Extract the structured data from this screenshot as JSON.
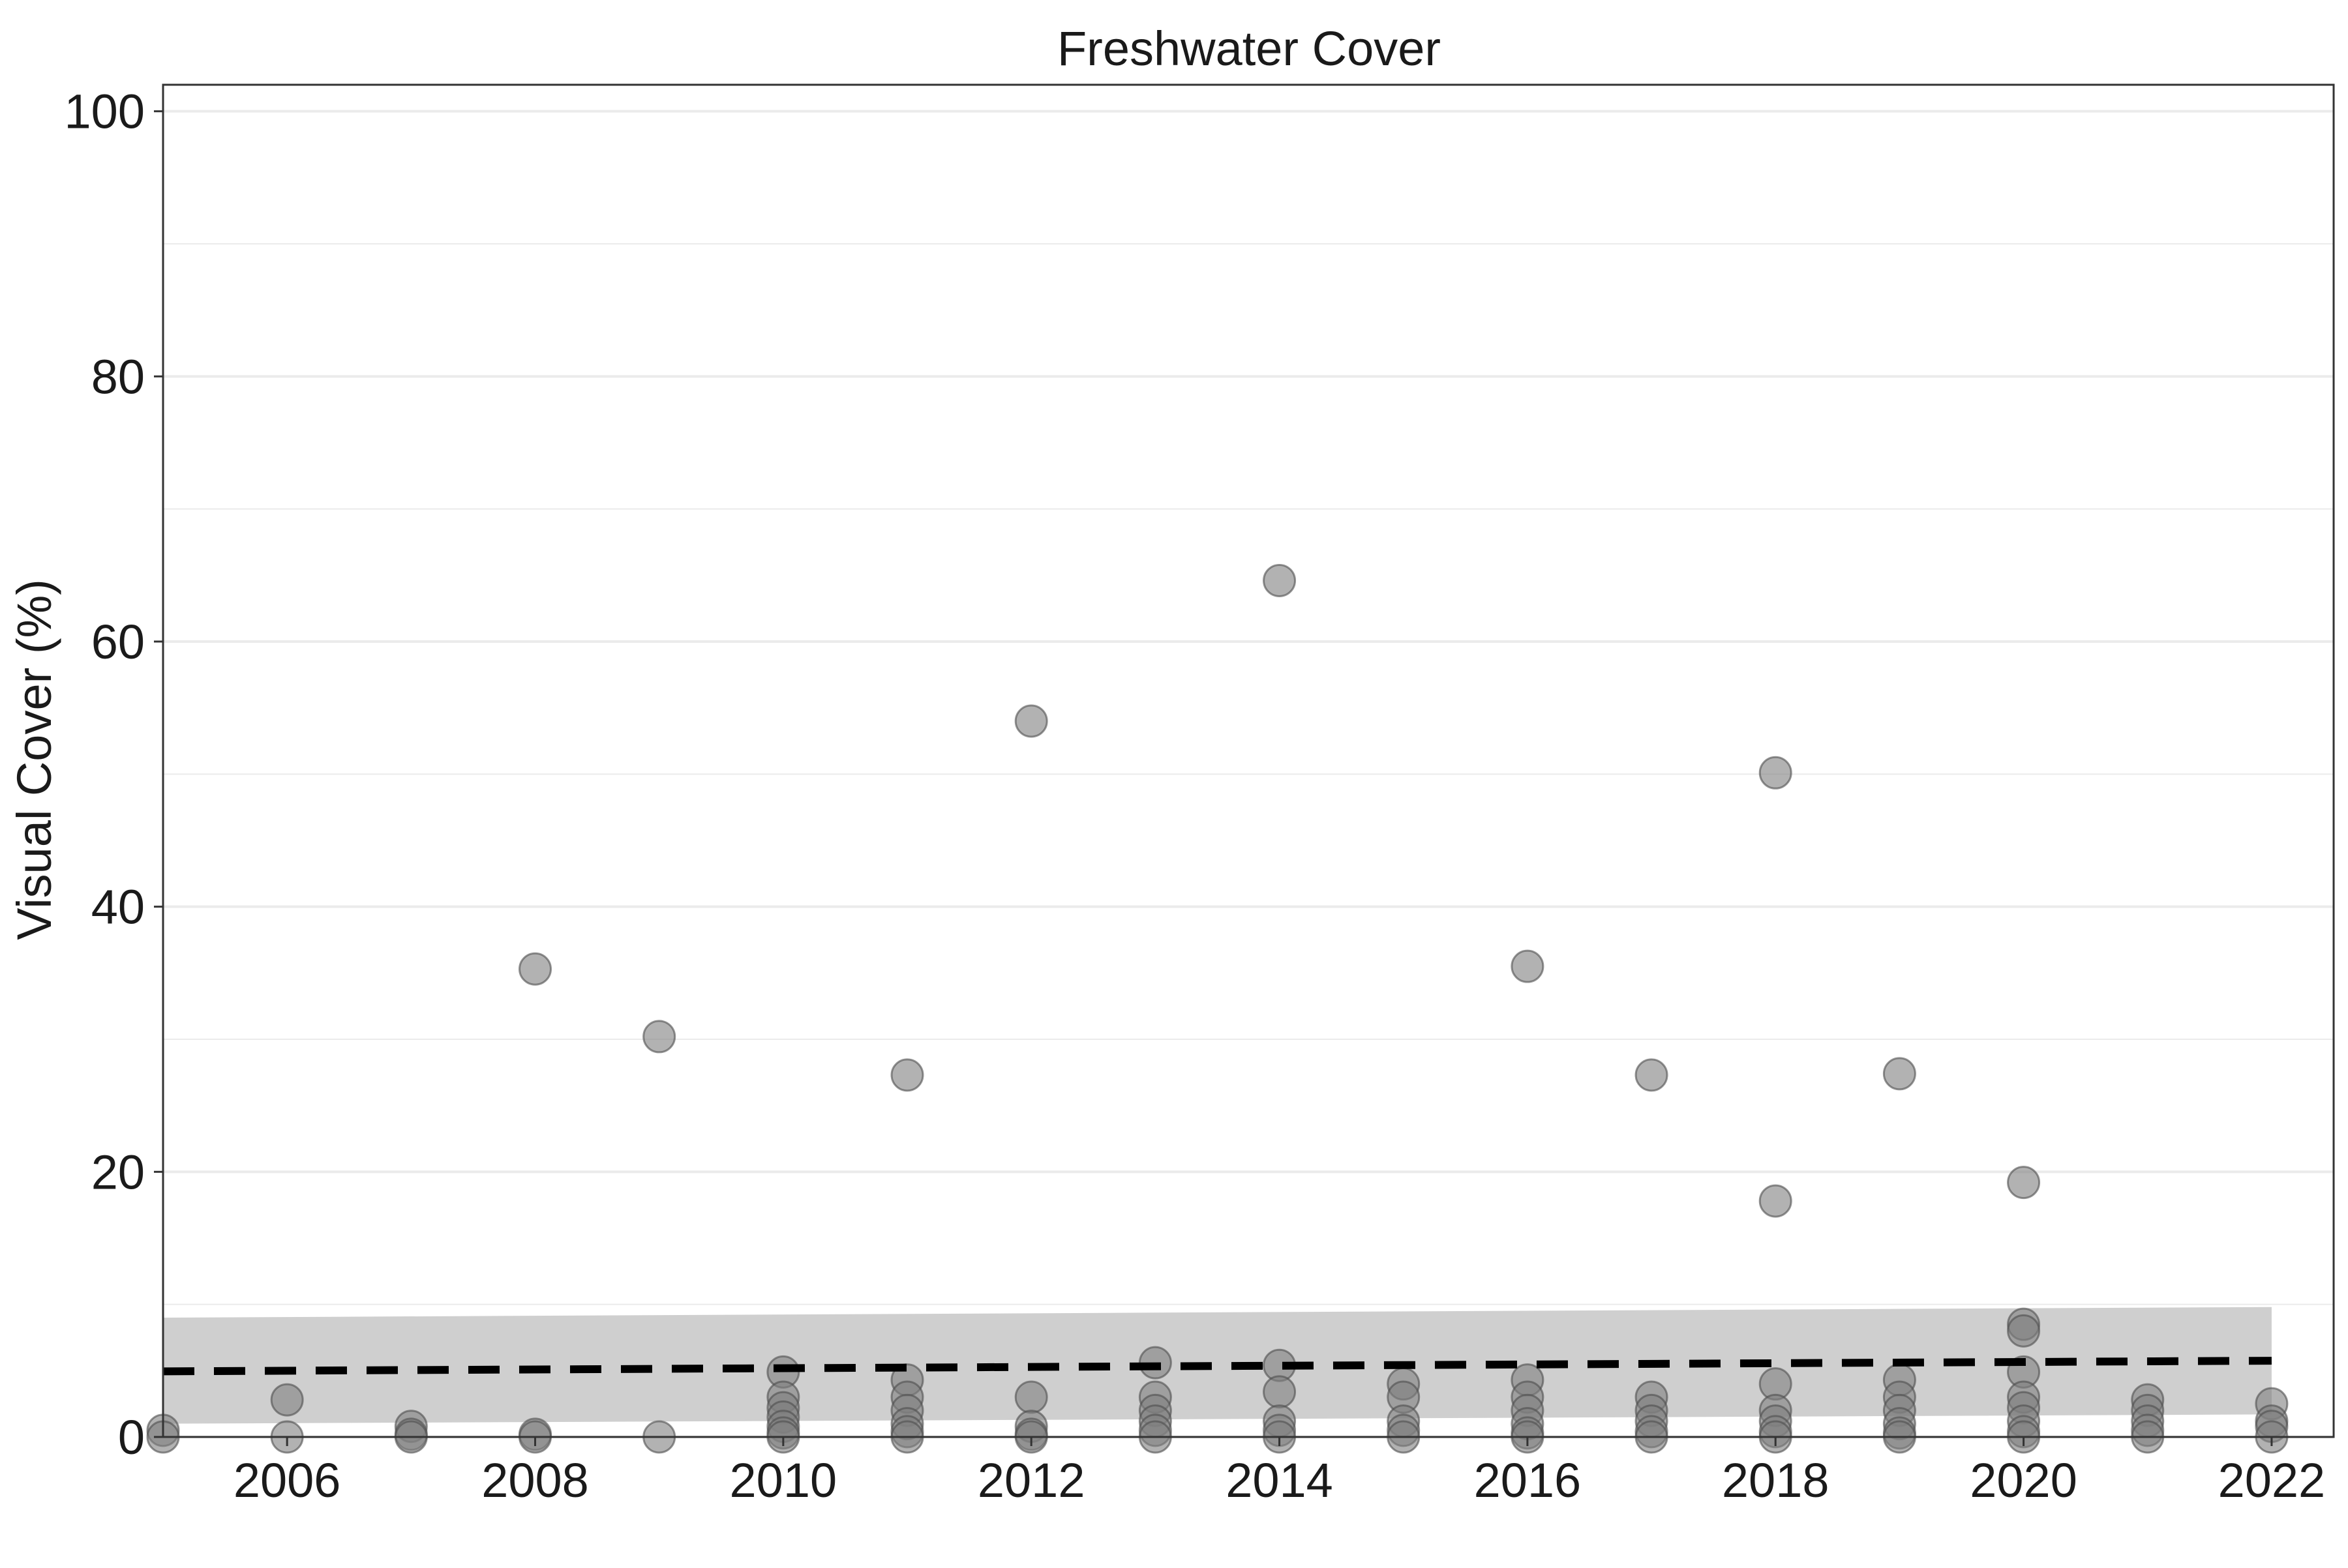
{
  "chart_data": {
    "type": "scatter",
    "title": "Freshwater Cover",
    "xlabel": "",
    "ylabel": "Visual Cover (%)",
    "xlim": [
      2005,
      2022.5
    ],
    "ylim": [
      0,
      102
    ],
    "xticks": [
      "2006",
      "2008",
      "2010",
      "2012",
      "2014",
      "2016",
      "2018",
      "2020",
      "2022"
    ],
    "yticks": [
      "0",
      "20",
      "40",
      "60",
      "80",
      "100"
    ],
    "grid": "horizontal",
    "legend": "none",
    "colors": {
      "point_fill": "#7f7f7f",
      "point_stroke": "#4d4d4d",
      "ribbon": "#bfbfbf",
      "trend_line": "#000000",
      "grid": "#ebebeb",
      "panel_border": "#333333"
    },
    "series": [
      {
        "points": [
          {
            "x": 2005,
            "y": 0.5
          },
          {
            "x": 2005,
            "y": 0
          },
          {
            "x": 2006,
            "y": 2.8
          },
          {
            "x": 2006,
            "y": 0
          },
          {
            "x": 2007,
            "y": 0.8
          },
          {
            "x": 2007,
            "y": 0.2
          },
          {
            "x": 2007,
            "y": 0
          },
          {
            "x": 2008,
            "y": 35.3
          },
          {
            "x": 2008,
            "y": 0.2
          },
          {
            "x": 2008,
            "y": 0
          },
          {
            "x": 2009,
            "y": 30.2
          },
          {
            "x": 2009,
            "y": 0
          },
          {
            "x": 2010,
            "y": 4.9
          },
          {
            "x": 2010,
            "y": 3.0
          },
          {
            "x": 2010,
            "y": 2.2
          },
          {
            "x": 2010,
            "y": 1.5
          },
          {
            "x": 2010,
            "y": 0.8
          },
          {
            "x": 2010,
            "y": 0.3
          },
          {
            "x": 2010,
            "y": 0
          },
          {
            "x": 2011,
            "y": 27.3
          },
          {
            "x": 2011,
            "y": 4.3
          },
          {
            "x": 2011,
            "y": 3.0
          },
          {
            "x": 2011,
            "y": 2.0
          },
          {
            "x": 2011,
            "y": 1.0
          },
          {
            "x": 2011,
            "y": 0.4
          },
          {
            "x": 2011,
            "y": 0
          },
          {
            "x": 2012,
            "y": 54.0
          },
          {
            "x": 2012,
            "y": 3.0
          },
          {
            "x": 2012,
            "y": 0.8
          },
          {
            "x": 2012,
            "y": 0.2
          },
          {
            "x": 2012,
            "y": 0
          },
          {
            "x": 2013,
            "y": 5.6
          },
          {
            "x": 2013,
            "y": 3.0
          },
          {
            "x": 2013,
            "y": 2.0
          },
          {
            "x": 2013,
            "y": 1.2
          },
          {
            "x": 2013,
            "y": 0.5
          },
          {
            "x": 2013,
            "y": 0
          },
          {
            "x": 2014,
            "y": 64.6
          },
          {
            "x": 2014,
            "y": 5.4
          },
          {
            "x": 2014,
            "y": 3.4
          },
          {
            "x": 2014,
            "y": 1.2
          },
          {
            "x": 2014,
            "y": 0.5
          },
          {
            "x": 2014,
            "y": 0
          },
          {
            "x": 2015,
            "y": 4.0
          },
          {
            "x": 2015,
            "y": 3.0
          },
          {
            "x": 2015,
            "y": 1.2
          },
          {
            "x": 2015,
            "y": 0.5
          },
          {
            "x": 2015,
            "y": 0
          },
          {
            "x": 2016,
            "y": 35.5
          },
          {
            "x": 2016,
            "y": 4.3
          },
          {
            "x": 2016,
            "y": 3.0
          },
          {
            "x": 2016,
            "y": 2.0
          },
          {
            "x": 2016,
            "y": 1.0
          },
          {
            "x": 2016,
            "y": 0.3
          },
          {
            "x": 2016,
            "y": 0
          },
          {
            "x": 2017,
            "y": 27.3
          },
          {
            "x": 2017,
            "y": 3.0
          },
          {
            "x": 2017,
            "y": 2.0
          },
          {
            "x": 2017,
            "y": 1.2
          },
          {
            "x": 2017,
            "y": 0.4
          },
          {
            "x": 2017,
            "y": 0
          },
          {
            "x": 2018,
            "y": 50.1
          },
          {
            "x": 2018,
            "y": 17.8
          },
          {
            "x": 2018,
            "y": 4.0
          },
          {
            "x": 2018,
            "y": 2.0
          },
          {
            "x": 2018,
            "y": 1.2
          },
          {
            "x": 2018,
            "y": 0.4
          },
          {
            "x": 2018,
            "y": 0
          },
          {
            "x": 2019,
            "y": 27.4
          },
          {
            "x": 2019,
            "y": 4.3
          },
          {
            "x": 2019,
            "y": 3.0
          },
          {
            "x": 2019,
            "y": 2.0
          },
          {
            "x": 2019,
            "y": 1.0
          },
          {
            "x": 2019,
            "y": 0.3
          },
          {
            "x": 2019,
            "y": 0
          },
          {
            "x": 2020,
            "y": 19.2
          },
          {
            "x": 2020,
            "y": 8.5
          },
          {
            "x": 2020,
            "y": 8.0
          },
          {
            "x": 2020,
            "y": 4.9
          },
          {
            "x": 2020,
            "y": 3.0
          },
          {
            "x": 2020,
            "y": 2.2
          },
          {
            "x": 2020,
            "y": 1.2
          },
          {
            "x": 2020,
            "y": 0.4
          },
          {
            "x": 2020,
            "y": 0
          },
          {
            "x": 2021,
            "y": 2.8
          },
          {
            "x": 2021,
            "y": 2.0
          },
          {
            "x": 2021,
            "y": 1.2
          },
          {
            "x": 2021,
            "y": 0.5
          },
          {
            "x": 2021,
            "y": 0
          },
          {
            "x": 2022,
            "y": 2.5
          },
          {
            "x": 2022,
            "y": 1.2
          },
          {
            "x": 2022,
            "y": 0.8
          },
          {
            "x": 2022,
            "y": 0
          }
        ]
      }
    ],
    "trend": {
      "style": "dashed",
      "x": [
        2005,
        2022
      ],
      "y": [
        4.95,
        5.75
      ],
      "band_upper": [
        9.0,
        9.8
      ],
      "band_lower": [
        1.0,
        1.7
      ]
    }
  }
}
